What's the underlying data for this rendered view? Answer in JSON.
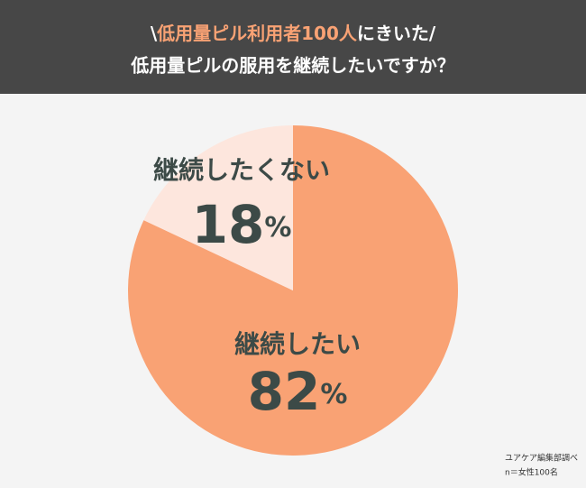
{
  "chart_data": {
    "type": "pie",
    "title_parts": [
      "\\",
      "低用量ピル利用者100人",
      "にきいた/"
    ],
    "title_line2": "低用量ピルの服用を継続したいですか？",
    "categories": [
      "継続したい",
      "継続したくない"
    ],
    "values": [
      82,
      18
    ],
    "value_labels": [
      "82%",
      "18%"
    ],
    "colors": [
      "#f9a274",
      "#fde6dd"
    ],
    "source": [
      "ユアケア編集部調べ",
      "n＝女性100名"
    ]
  }
}
